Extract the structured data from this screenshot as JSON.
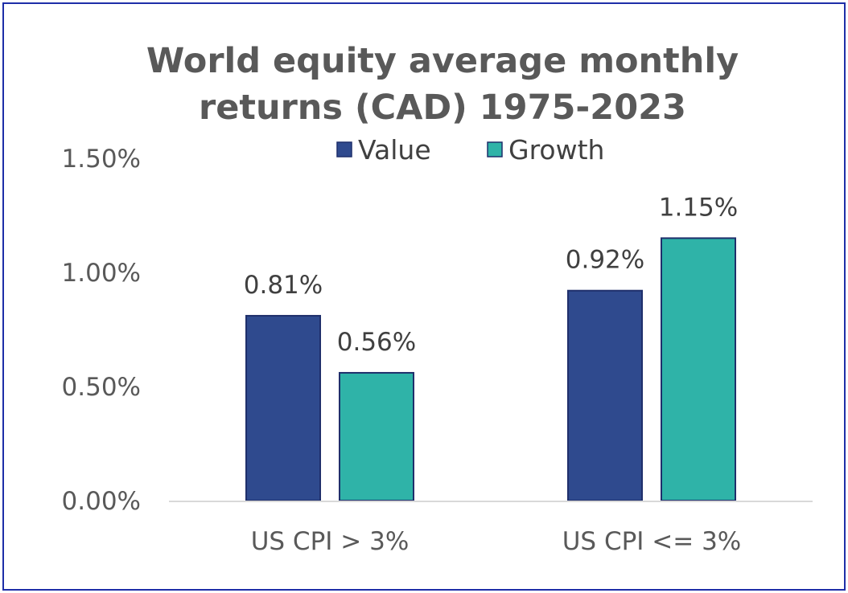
{
  "chart_data": {
    "type": "bar",
    "title_lines": [
      "World equity average monthly",
      "returns (CAD) 1975-2023"
    ],
    "categories": [
      "US CPI > 3%",
      "US CPI <= 3%"
    ],
    "series": [
      {
        "name": "Value",
        "values": [
          0.81,
          0.92
        ],
        "labels": [
          "0.81%",
          "0.92%"
        ],
        "color": "#2f4a8e"
      },
      {
        "name": "Growth",
        "values": [
          0.56,
          1.15
        ],
        "labels": [
          "0.56%",
          "1.15%"
        ],
        "color": "#2fb3a8"
      }
    ],
    "ylim": [
      0,
      1.5
    ],
    "yticks": [
      0,
      0.5,
      1.0,
      1.5
    ],
    "ytick_labels": [
      "0.00%",
      "0.50%",
      "1.00%",
      "1.50%"
    ],
    "legend_position": "top",
    "grid": false,
    "colors": {
      "title": "#595959",
      "axis_line": "#d9d9d9",
      "bar_outline": "#1f2f6b",
      "frame_border": "#1e2ea8"
    }
  }
}
